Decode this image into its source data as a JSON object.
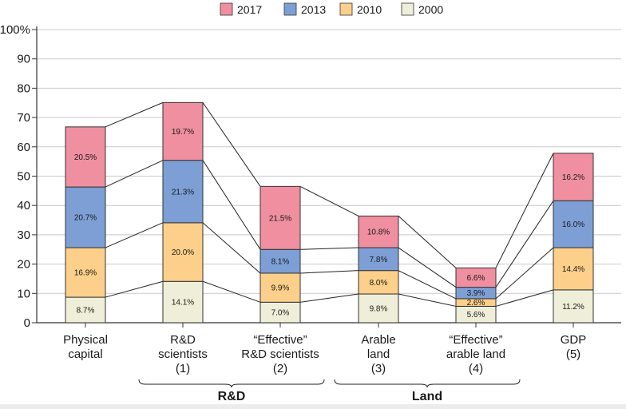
{
  "chart_data": {
    "type": "bar",
    "stacked": true,
    "categories": [
      [
        "Physical",
        "capital"
      ],
      [
        "R&D",
        "scientists",
        "(1)"
      ],
      [
        "“Effective”",
        "R&D scientists",
        "(2)"
      ],
      [
        "Arable",
        "land",
        "(3)"
      ],
      [
        "“Effective”",
        "arable land",
        "(4)"
      ],
      [
        "GDP",
        "(5)"
      ]
    ],
    "series": [
      {
        "name": "2000",
        "color": "#efeed8",
        "values": [
          8.7,
          14.1,
          7.0,
          9.8,
          5.6,
          11.2
        ],
        "labels": [
          "8.7%",
          "14.1%",
          "7.0%",
          "9.8%",
          "5.6%",
          "11.2%"
        ]
      },
      {
        "name": "2010",
        "color": "#fccf8a",
        "values": [
          16.9,
          20.0,
          9.9,
          8.0,
          2.6,
          14.4
        ],
        "labels": [
          "16.9%",
          "20.0%",
          "9.9%",
          "8.0%",
          "2.6%",
          "14.4%"
        ]
      },
      {
        "name": "2013",
        "color": "#7d9fd6",
        "values": [
          20.7,
          21.3,
          8.1,
          7.8,
          3.9,
          16.0
        ],
        "labels": [
          "20.7%",
          "21.3%",
          "8.1%",
          "7.8%",
          "3.9%",
          "16.0%"
        ]
      },
      {
        "name": "2017",
        "color": "#ef8fa0",
        "values": [
          20.5,
          19.7,
          21.5,
          10.8,
          6.6,
          16.2
        ],
        "labels": [
          "20.5%",
          "19.7%",
          "21.5%",
          "10.8%",
          "6.6%",
          "16.2%"
        ]
      }
    ],
    "legend_order": [
      "2017",
      "2013",
      "2010",
      "2000"
    ],
    "legend_position": "top",
    "ylim": [
      0,
      100
    ],
    "yticks": [
      0,
      10,
      20,
      30,
      40,
      50,
      60,
      70,
      80,
      90,
      100
    ],
    "ytick_labels": [
      "0",
      "10",
      "20",
      "30",
      "40",
      "50",
      "60",
      "70",
      "80",
      "90",
      "100%"
    ],
    "grid": true,
    "connector_lines": true,
    "groups": [
      {
        "label": "R&D",
        "from": 1,
        "to": 2
      },
      {
        "label": "Land",
        "from": 3,
        "to": 4
      }
    ],
    "xlabel": "",
    "ylabel": "",
    "title": ""
  }
}
